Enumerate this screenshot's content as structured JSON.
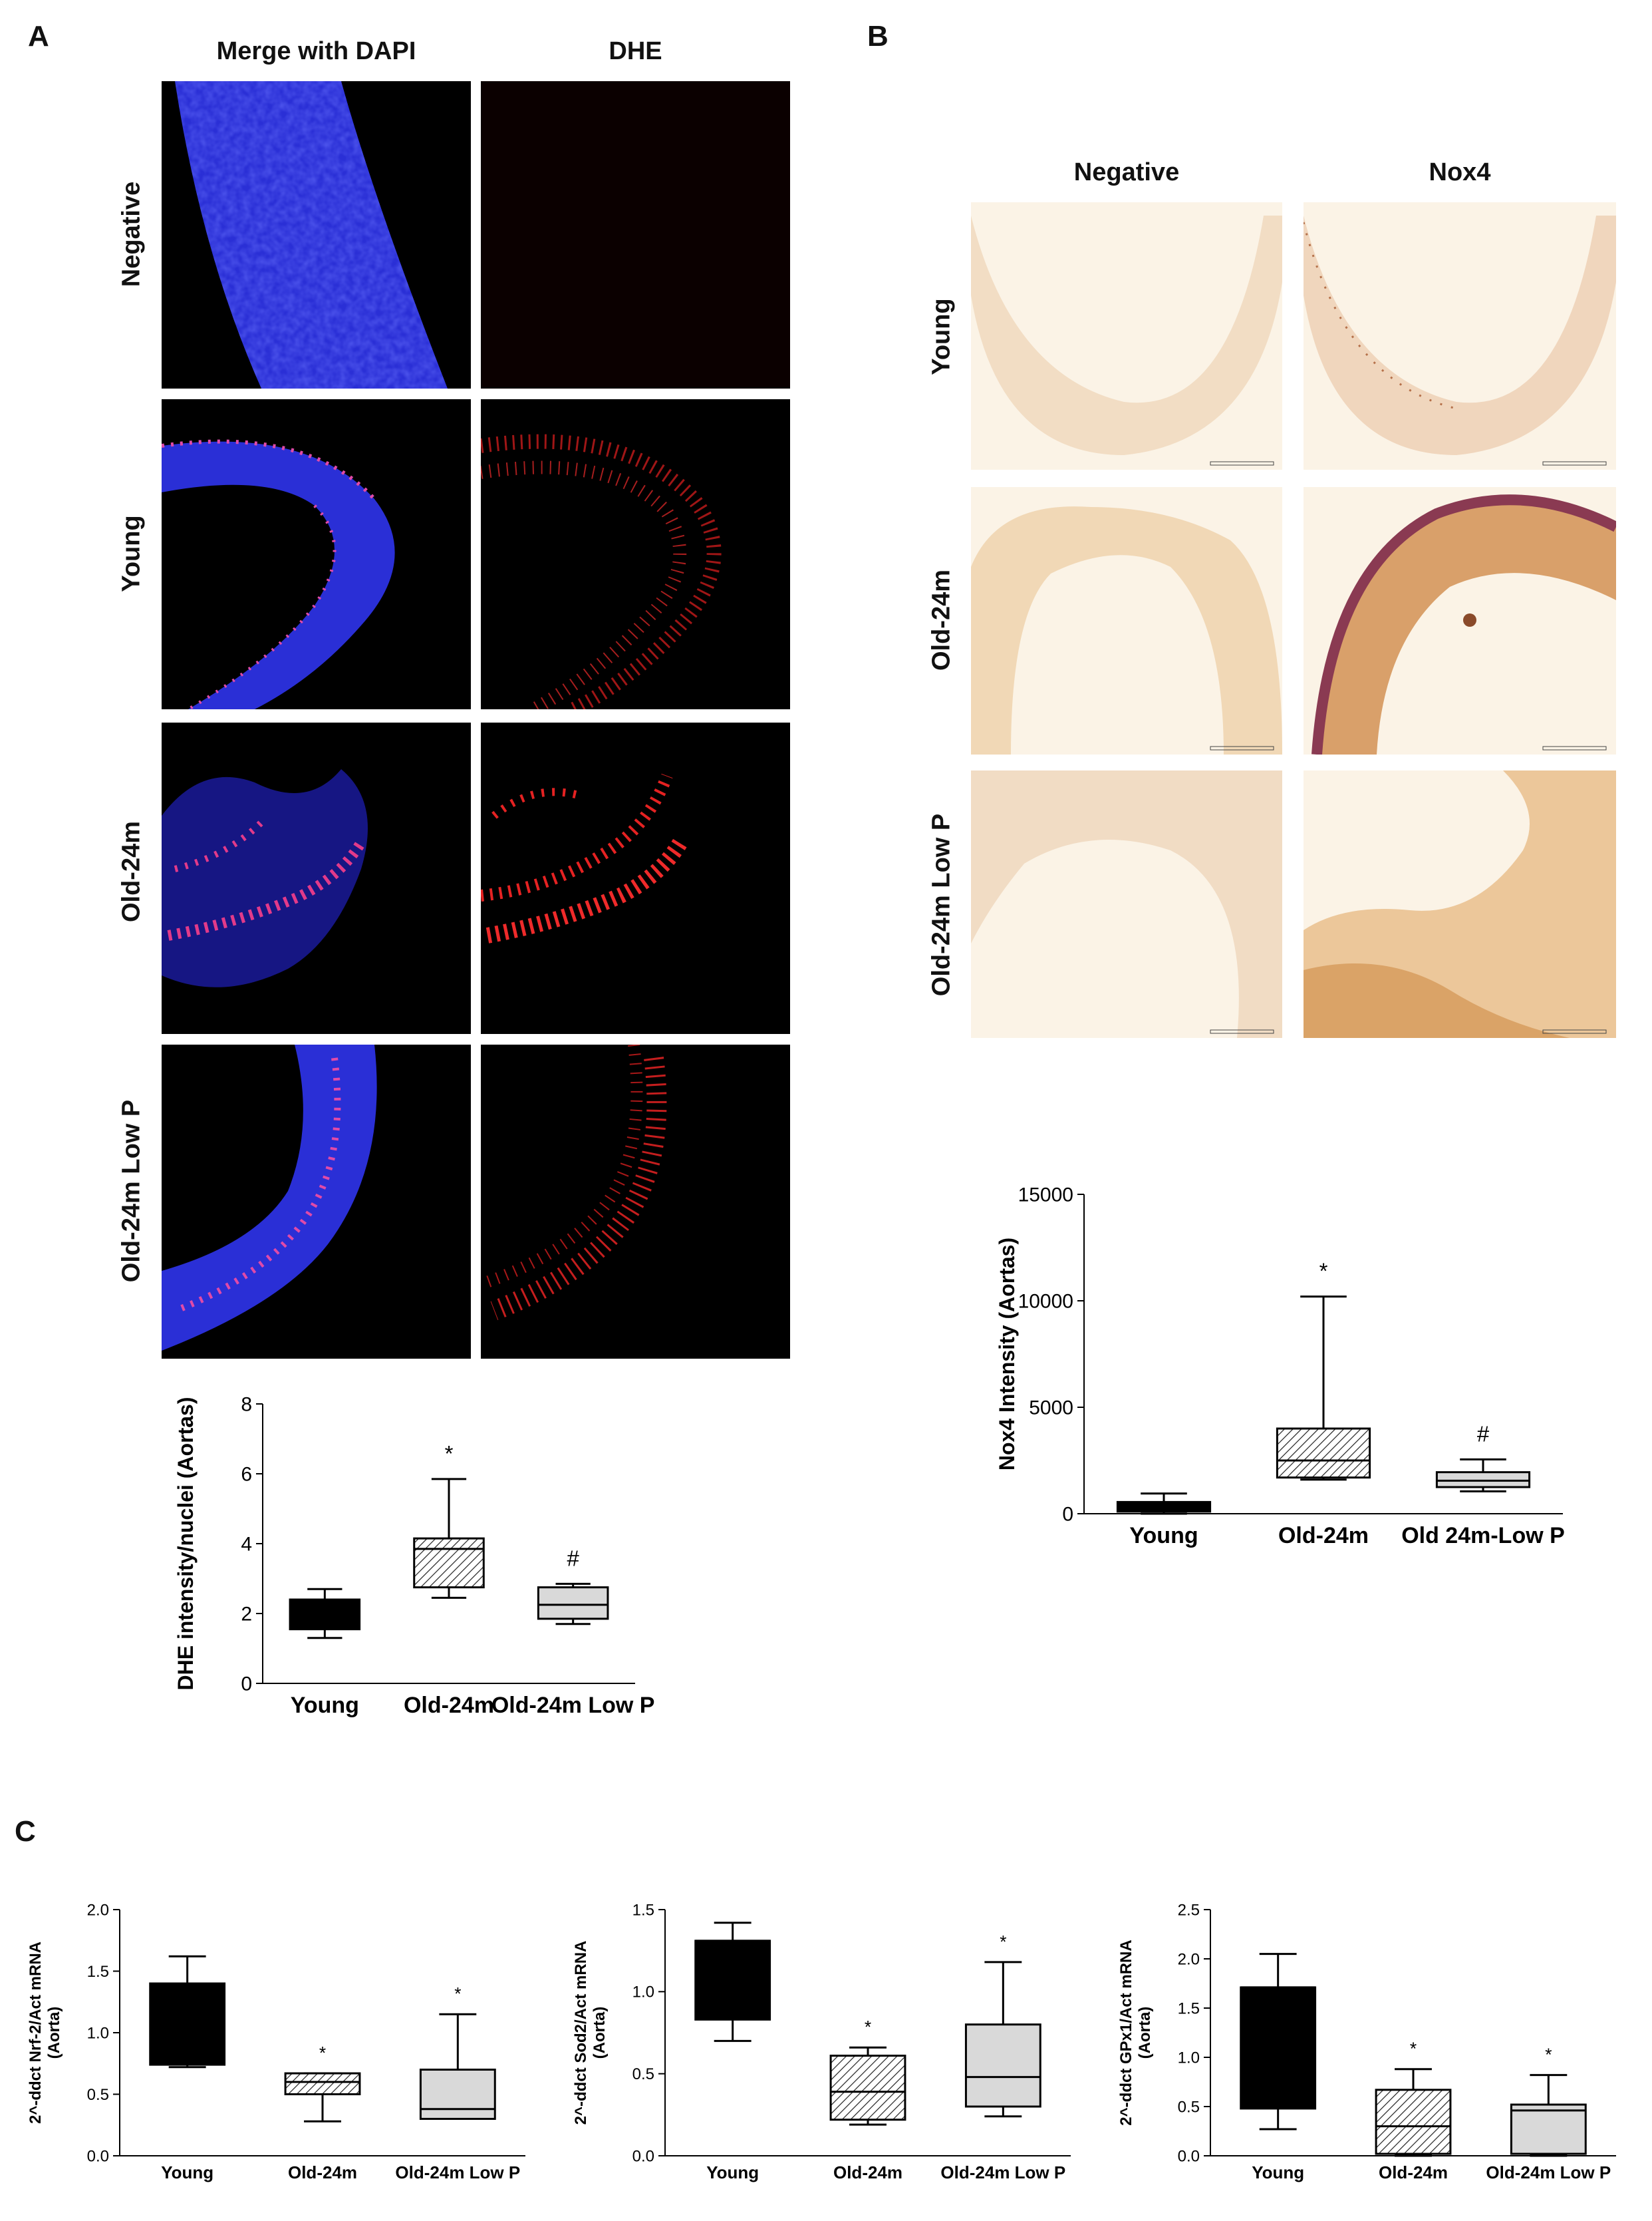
{
  "panels": {
    "A": {
      "letter": "A",
      "col_headers": [
        "Merge with DAPI",
        "DHE"
      ],
      "row_labels": [
        "Negative",
        "Young",
        "Old-24m",
        "Old-24m Low P"
      ]
    },
    "B": {
      "letter": "B",
      "col_headers": [
        "Negative",
        "Nox4"
      ],
      "row_labels": [
        "Young",
        "Old-24m",
        "Old-24m Low P"
      ]
    },
    "C": {
      "letter": "C"
    }
  },
  "colors": {
    "dapi_blue": "#2a2fd6",
    "dhe_red": "#e0302a",
    "tissue_tan": "#f3dfc4",
    "nox4_brown": "#b86f3a",
    "box_black": "#000000",
    "box_gray": "#d9d9d9"
  },
  "chart_data": [
    {
      "id": "dhe",
      "type": "box",
      "ylabel": "DHE intensity/nuclei (Aortas)",
      "categories": [
        "Young",
        "Old-24m",
        "Old-24m Low P"
      ],
      "ylim": [
        0,
        8
      ],
      "yticks": [
        "0",
        "2",
        "4",
        "6",
        "8"
      ],
      "boxes": [
        {
          "min": 1.3,
          "q1": 1.55,
          "median": 1.9,
          "q3": 2.4,
          "max": 2.7,
          "fill": "black"
        },
        {
          "min": 2.45,
          "q1": 2.75,
          "median": 3.85,
          "q3": 4.15,
          "max": 5.85,
          "fill": "hatch"
        },
        {
          "min": 1.7,
          "q1": 1.85,
          "median": 2.25,
          "q3": 2.75,
          "max": 2.85,
          "fill": "gray"
        }
      ],
      "annotations": [
        "",
        "*",
        "#"
      ]
    },
    {
      "id": "nox4",
      "type": "box",
      "ylabel": "Nox4 Intensity (Aortas)",
      "categories": [
        "Young",
        "Old-24m",
        "Old 24m-Low P"
      ],
      "ylim": [
        0,
        15000
      ],
      "yticks": [
        "0",
        "5000",
        "10000",
        "15000"
      ],
      "boxes": [
        {
          "min": 0,
          "q1": 100,
          "median": 300,
          "q3": 550,
          "max": 950,
          "fill": "black"
        },
        {
          "min": 1600,
          "q1": 1700,
          "median": 2500,
          "q3": 4000,
          "max": 10200,
          "fill": "hatch"
        },
        {
          "min": 1050,
          "q1": 1250,
          "median": 1550,
          "q3": 1950,
          "max": 2550,
          "fill": "gray"
        }
      ],
      "annotations": [
        "",
        "*",
        "#"
      ]
    },
    {
      "id": "nrf2",
      "type": "box",
      "ylabel": [
        "2^-ddct Nrf-2/Act mRNA",
        "(Aorta)"
      ],
      "categories": [
        "Young",
        "Old-24m",
        "Old-24m Low P"
      ],
      "ylim": [
        0,
        2
      ],
      "yticks": [
        "0.0",
        "0.5",
        "1.0",
        "1.5",
        "2.0"
      ],
      "boxes": [
        {
          "min": 0.72,
          "q1": 0.74,
          "median": 1.4,
          "q3": 1.4,
          "max": 1.62,
          "fill": "black"
        },
        {
          "min": 0.28,
          "q1": 0.5,
          "median": 0.6,
          "q3": 0.67,
          "max": 0.67,
          "fill": "hatch"
        },
        {
          "min": 0.3,
          "q1": 0.3,
          "median": 0.38,
          "q3": 0.7,
          "max": 1.15,
          "fill": "gray"
        }
      ],
      "annotations": [
        "",
        "*",
        "*"
      ]
    },
    {
      "id": "sod2",
      "type": "box",
      "ylabel": [
        "2^-ddct Sod2/Act mRNA",
        "(Aorta)"
      ],
      "categories": [
        "Young",
        "Old-24m",
        "Old-24m Low P"
      ],
      "ylim": [
        0,
        1.5
      ],
      "yticks": [
        "0.0",
        "0.5",
        "1.0",
        "1.5"
      ],
      "boxes": [
        {
          "min": 0.7,
          "q1": 0.83,
          "median": 1.31,
          "q3": 1.31,
          "max": 1.42,
          "fill": "black"
        },
        {
          "min": 0.19,
          "q1": 0.22,
          "median": 0.39,
          "q3": 0.61,
          "max": 0.66,
          "fill": "hatch"
        },
        {
          "min": 0.24,
          "q1": 0.3,
          "median": 0.48,
          "q3": 0.8,
          "max": 1.18,
          "fill": "gray"
        }
      ],
      "annotations": [
        "",
        "*",
        "*"
      ]
    },
    {
      "id": "gpx1",
      "type": "box",
      "ylabel": [
        "2^-ddct GPx1/Act mRNA",
        "(Aorta)"
      ],
      "categories": [
        "Young",
        "Old-24m",
        "Old-24m Low P"
      ],
      "ylim": [
        0,
        2.5
      ],
      "yticks": [
        "0.0",
        "0.5",
        "1.0",
        "1.5",
        "2.0",
        "2.5"
      ],
      "boxes": [
        {
          "min": 0.27,
          "q1": 0.48,
          "median": 1.71,
          "q3": 1.71,
          "max": 2.05,
          "fill": "black"
        },
        {
          "min": 0.0,
          "q1": 0.02,
          "median": 0.3,
          "q3": 0.67,
          "max": 0.88,
          "fill": "hatch"
        },
        {
          "min": 0.0,
          "q1": 0.02,
          "median": 0.46,
          "q3": 0.52,
          "max": 0.82,
          "fill": "gray"
        }
      ],
      "annotations": [
        "",
        "*",
        "*"
      ]
    }
  ]
}
